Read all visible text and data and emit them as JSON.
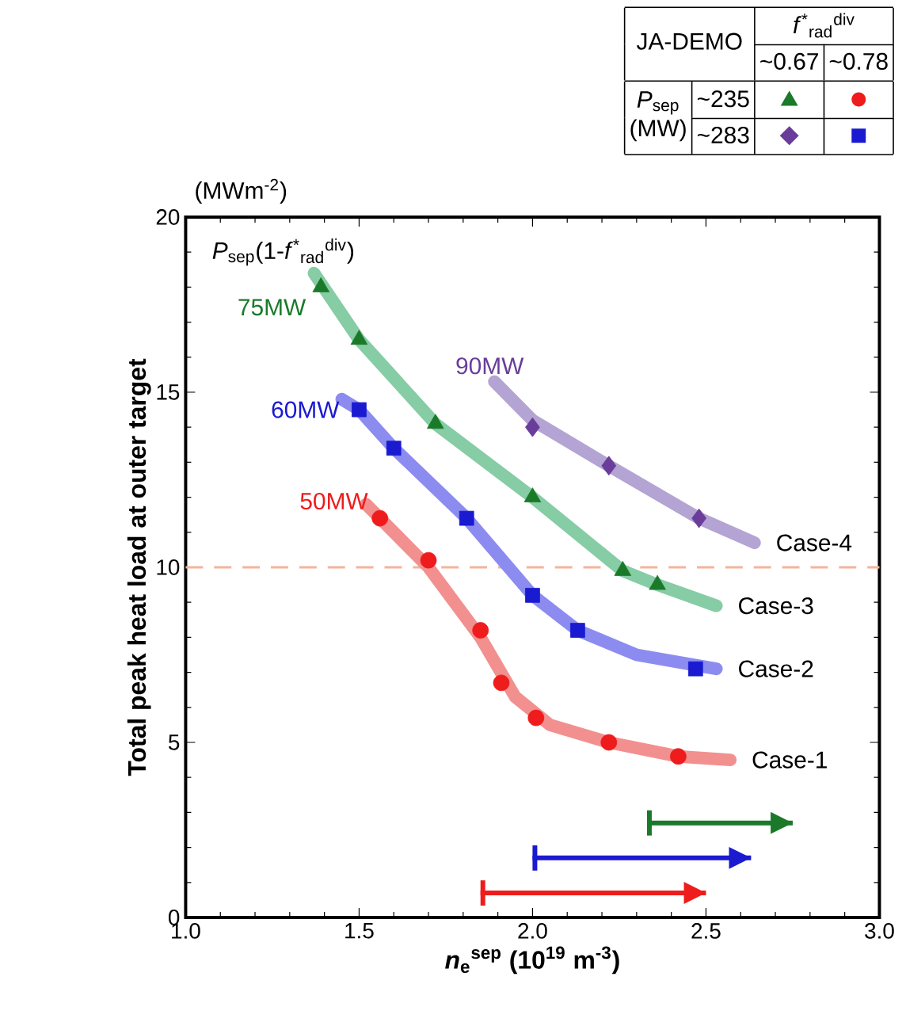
{
  "chart_data": {
    "type": "scatter",
    "xlabel": "*n*$_{e}$$^{sep}$ (10$^{19}$ m$^{-3}$)",
    "ylabel": "Total peak heat load at outer target",
    "xlim": [
      1,
      3
    ],
    "xticks": [
      {
        "value": 1,
        "label": "1.0"
      },
      {
        "value": 1.5,
        "label": "1.5"
      },
      {
        "value": 2,
        "label": "2.0"
      },
      {
        "value": 2.5,
        "label": "2.5"
      },
      {
        "value": 3,
        "label": "3.0"
      }
    ],
    "ylim": [
      0,
      20
    ],
    "yticks": [
      0,
      5,
      10,
      15,
      20
    ],
    "ref_lines": [
      {
        "axis": "y",
        "value": 10,
        "color": "#f4b49c",
        "line_style": "dashed"
      }
    ],
    "annotations": [
      "(MWm$^{-2}$)",
      "*P*$_{sep}$(1-*f*$^{*}$$_{rad}$$^{div}$)",
      "JA-DEMO",
      "*f*$^{*}$$_{rad}$$^{div}$",
      "~0.67",
      "~0.78",
      "*P*$_{sep}$",
      "(MW)",
      "~235",
      "~283"
    ],
    "series": [
      {
        "name": "50MW",
        "color": "#ee1c1c",
        "marker": "circle",
        "x": [
          1.56,
          1.7,
          1.85,
          1.91,
          2.01,
          2.22,
          2.42
        ],
        "values": [
          11.4,
          10.2,
          8.2,
          6.7,
          5.7,
          5.0,
          4.6
        ]
      },
      {
        "name": "60MW",
        "color": "#1a1ad0",
        "marker": "square",
        "x": [
          1.5,
          1.6,
          1.81,
          2.0,
          2.13,
          2.47
        ],
        "values": [
          14.5,
          13.4,
          11.4,
          9.2,
          8.2,
          7.1
        ]
      },
      {
        "name": "75MW",
        "color": "#1a7a2a",
        "marker": "triangle",
        "x": [
          1.39,
          1.5,
          1.72,
          2.0,
          2.26,
          2.36
        ],
        "values": [
          18.0,
          16.5,
          14.1,
          12.0,
          9.9,
          9.5
        ]
      },
      {
        "name": "90MW",
        "color": "#6a3d9a",
        "marker": "diamond",
        "x": [
          2.0,
          2.22,
          2.48
        ],
        "values": [
          14.0,
          12.9,
          11.4
        ]
      },
      {
        "type": "line",
        "name": "Case-1",
        "color": "#f29090",
        "x": [
          1.52,
          1.7,
          1.85,
          1.95,
          2.05,
          2.22,
          2.42,
          2.57
        ],
        "values": [
          11.8,
          10.0,
          8.0,
          6.3,
          5.5,
          5.0,
          4.6,
          4.5
        ]
      },
      {
        "type": "line",
        "name": "Case-2",
        "color": "#8c8cf0",
        "x": [
          1.45,
          1.5,
          1.6,
          1.81,
          2.0,
          2.13,
          2.3,
          2.53
        ],
        "values": [
          14.8,
          14.5,
          13.4,
          11.4,
          9.2,
          8.2,
          7.5,
          7.1
        ]
      },
      {
        "type": "line",
        "name": "Case-3",
        "color": "#86cca4",
        "x": [
          1.37,
          1.5,
          1.72,
          2.0,
          2.26,
          2.36,
          2.53
        ],
        "values": [
          18.4,
          16.5,
          14.1,
          12.0,
          9.9,
          9.5,
          8.9
        ]
      },
      {
        "type": "line",
        "name": "Case-4",
        "color": "#b4a4d4",
        "x": [
          1.89,
          2.0,
          2.22,
          2.48,
          2.64
        ],
        "values": [
          15.3,
          14.2,
          12.9,
          11.4,
          10.7
        ]
      },
      {
        "type": "line",
        "color": "#ee1c1c",
        "x": [
          1.85,
          2.5
        ],
        "values": [
          0.7,
          0.7
        ]
      },
      {
        "type": "line",
        "color": "#1a1ad0",
        "x": [
          2.0,
          2.63
        ],
        "values": [
          1.7,
          1.7
        ]
      },
      {
        "type": "line",
        "color": "#1a7a2a",
        "x": [
          2.33,
          2.75
        ],
        "values": [
          2.7,
          2.7
        ]
      }
    ]
  }
}
